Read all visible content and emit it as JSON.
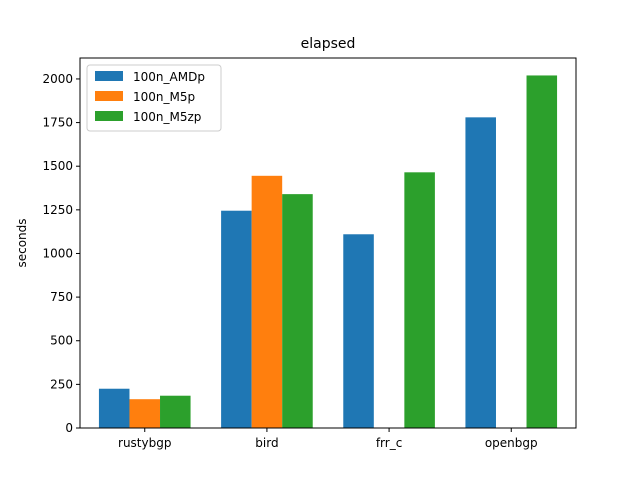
{
  "chart_data": {
    "type": "bar",
    "title": "elapsed",
    "xlabel": "",
    "ylabel": "seconds",
    "categories": [
      "rustybgp",
      "bird",
      "frr_c",
      "openbgp"
    ],
    "series": [
      {
        "name": "100n_AMDp",
        "color": "#1f77b4",
        "values": [
          225,
          1245,
          1110,
          1780
        ]
      },
      {
        "name": "100n_M5p",
        "color": "#ff7f0e",
        "values": [
          165,
          1445,
          0,
          0
        ]
      },
      {
        "name": "100n_M5zp",
        "color": "#2ca02c",
        "values": [
          185,
          1340,
          1465,
          2020
        ]
      }
    ],
    "ylim": [
      0,
      2120
    ],
    "yticks": [
      0,
      250,
      500,
      750,
      1000,
      1250,
      1500,
      1750,
      2000
    ],
    "legend": "upper-left",
    "grid": false
  }
}
